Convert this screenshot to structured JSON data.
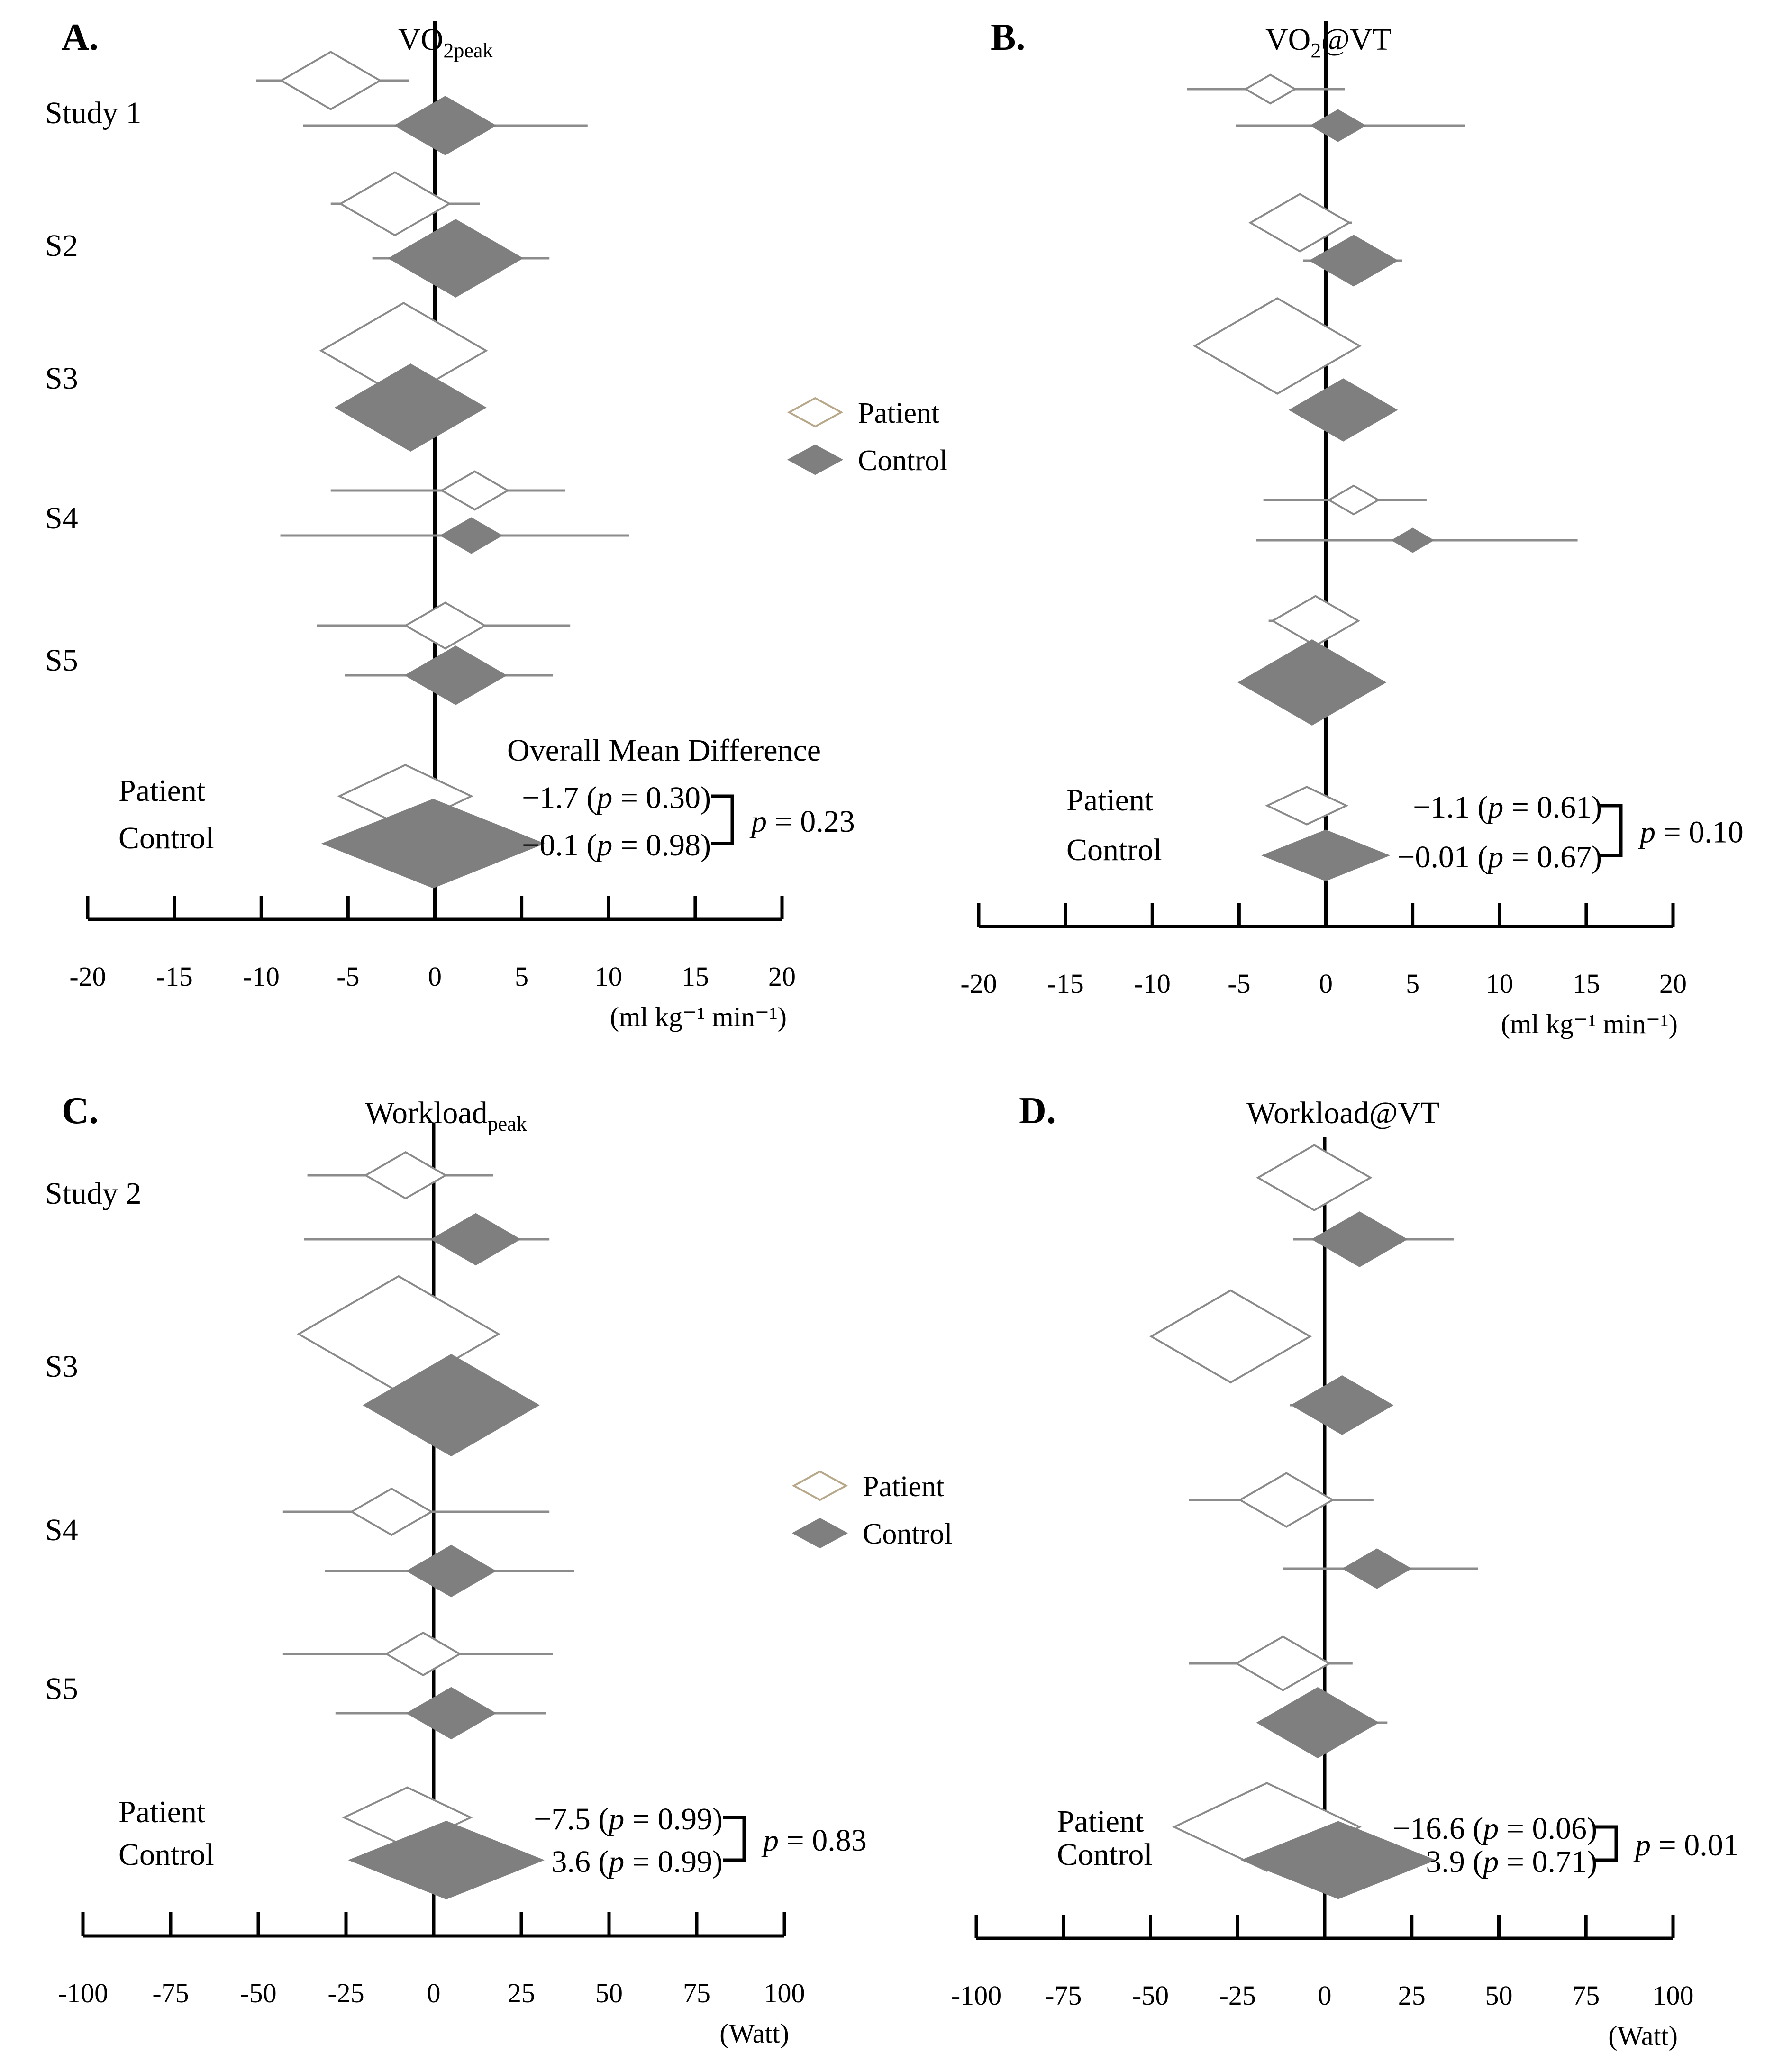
{
  "colors": {
    "patient_fill": "#ffffff",
    "patient_stroke": "#8a8a8a",
    "control_fill": "#7f7f7f",
    "ci_line": "#8c8c8c",
    "axis": "#000000"
  },
  "chart_data": [
    {
      "id": "A",
      "type": "forest",
      "panel_label": "A.",
      "title": "VO",
      "title_sub": "2peak",
      "unit_label": "(ml kg⁻¹ min⁻¹)",
      "xlim": [
        -20,
        20
      ],
      "ticks": [
        -20,
        -15,
        -10,
        -5,
        0,
        5,
        10,
        15,
        20
      ],
      "row_labels": [
        "Study 1",
        "S2",
        "S3",
        "S4",
        "S5"
      ],
      "studies": [
        {
          "patient": {
            "est": -6,
            "lo": -10.3,
            "hi": -1.5,
            "w": 3
          },
          "control": {
            "est": 0.6,
            "lo": -7.6,
            "hi": 8.8,
            "w": 3
          }
        },
        {
          "patient": {
            "est": -2.3,
            "lo": -6,
            "hi": 2.6,
            "w": 3.3
          },
          "control": {
            "est": 1.2,
            "lo": -3.6,
            "hi": 6.6,
            "w": 4
          }
        },
        {
          "patient": {
            "est": -1.8,
            "lo": -4,
            "hi": 0.8,
            "w": 5
          },
          "control": {
            "est": -1.4,
            "lo": -3.8,
            "hi": 1.9,
            "w": 4.5
          }
        },
        {
          "patient": {
            "est": 2.3,
            "lo": -6,
            "hi": 7.5,
            "w": 2
          },
          "control": {
            "est": 2.1,
            "lo": -8.9,
            "hi": 11.2,
            "w": 1.8
          }
        },
        {
          "patient": {
            "est": 0.6,
            "lo": -6.8,
            "hi": 7.8,
            "w": 2.4
          },
          "control": {
            "est": 1.2,
            "lo": -5.2,
            "hi": 6.8,
            "w": 3
          }
        }
      ],
      "overall_heading": "Overall Mean Difference",
      "overall": {
        "patient": {
          "label": "Patient",
          "est": -1.7,
          "w": 4,
          "text_value": "−1.7",
          "text_p": "0.30"
        },
        "control": {
          "label": "Control",
          "est": -0.1,
          "w": 6,
          "text_value": "−0.1",
          "text_p": "0.98"
        },
        "p_compare": "0.23"
      },
      "legend": {
        "patient": "Patient",
        "control": "Control"
      }
    },
    {
      "id": "B",
      "type": "forest",
      "panel_label": "B.",
      "title": "VO",
      "title_sub": "2",
      "title_suffix": "@VT",
      "unit_label": "(ml kg⁻¹ min⁻¹)",
      "xlim": [
        -20,
        20
      ],
      "ticks": [
        -20,
        -15,
        -10,
        -5,
        0,
        5,
        10,
        15,
        20
      ],
      "studies": [
        {
          "patient": {
            "est": -3.2,
            "lo": -8,
            "hi": 1.1,
            "w": 1.5
          },
          "control": {
            "est": 0.7,
            "lo": -5.2,
            "hi": 8,
            "w": 1.6
          }
        },
        {
          "patient": {
            "est": -1.5,
            "lo": -3,
            "hi": 1.5,
            "w": 3
          },
          "control": {
            "est": 1.6,
            "lo": -1.3,
            "hi": 4.4,
            "w": 2.6
          }
        },
        {
          "patient": {
            "est": -2.8,
            "lo": -5.2,
            "hi": 0,
            "w": 5
          },
          "control": {
            "est": 1,
            "lo": -0.5,
            "hi": 2.3,
            "w": 3.2
          }
        },
        {
          "patient": {
            "est": 1.6,
            "lo": -3.6,
            "hi": 5.8,
            "w": 1.5
          },
          "control": {
            "est": 5,
            "lo": -4,
            "hi": 14.5,
            "w": 1.2
          }
        },
        {
          "patient": {
            "est": -0.6,
            "lo": -3.3,
            "hi": 1.6,
            "w": 2.6
          },
          "control": {
            "est": -0.8,
            "lo": -3,
            "hi": 1.4,
            "w": 4.4
          }
        }
      ],
      "overall": {
        "patient": {
          "label": "Patient",
          "est": -1.1,
          "w": 2.4,
          "text_value": "−1.1",
          "text_p": "0.61"
        },
        "control": {
          "label": "Control",
          "est": -0.01,
          "w": 3.4,
          "text_value": "−0.01",
          "text_p": "0.67"
        },
        "p_compare": "0.10"
      }
    },
    {
      "id": "C",
      "type": "forest",
      "panel_label": "C.",
      "title": "Workload",
      "title_sub": "peak",
      "unit_label": "(Watt)",
      "xlim": [
        -100,
        100
      ],
      "ticks": [
        -100,
        -75,
        -50,
        -25,
        0,
        25,
        50,
        75,
        100
      ],
      "row_labels": [
        "Study 2",
        "S3",
        "S4",
        "S5"
      ],
      "studies": [
        {
          "patient": {
            "est": -8,
            "lo": -36,
            "hi": 17,
            "w": 12
          },
          "control": {
            "est": 12,
            "lo": -37,
            "hi": 33,
            "w": 13
          }
        },
        {
          "patient": {
            "est": -10,
            "lo": -25,
            "hi": 5,
            "w": 30
          },
          "control": {
            "est": 5,
            "lo": -8,
            "hi": 18,
            "w": 26
          }
        },
        {
          "patient": {
            "est": -12,
            "lo": -43,
            "hi": 33,
            "w": 12
          },
          "control": {
            "est": 5,
            "lo": -31,
            "hi": 40,
            "w": 13
          }
        },
        {
          "patient": {
            "est": -3,
            "lo": -43,
            "hi": 34,
            "w": 11
          },
          "control": {
            "est": 5,
            "lo": -28,
            "hi": 32,
            "w": 13
          }
        }
      ],
      "overall": {
        "patient": {
          "label": "Patient",
          "est": -7.5,
          "w": 19,
          "text_value": "−7.5",
          "text_p": "0.99"
        },
        "control": {
          "label": "Control",
          "est": 3.6,
          "w": 26,
          "text_value": "3.6",
          "text_p": "0.99"
        },
        "p_compare": "0.83"
      },
      "legend": {
        "patient": "Patient",
        "control": "Control"
      }
    },
    {
      "id": "D",
      "type": "forest",
      "panel_label": "D.",
      "title": "Workload@VT",
      "unit_label": "(Watt)",
      "xlim": [
        -100,
        100
      ],
      "ticks": [
        -100,
        -75,
        -50,
        -25,
        0,
        25,
        50,
        75,
        100
      ],
      "studies": [
        {
          "patient": {
            "est": -3,
            "lo": -18,
            "hi": 10,
            "w": 17
          },
          "control": {
            "est": 10,
            "lo": -9,
            "hi": 37,
            "w": 14
          }
        },
        {
          "patient": {
            "est": -27,
            "lo": -39,
            "hi": -15,
            "w": 24
          },
          "control": {
            "est": 5,
            "lo": -10,
            "hi": 18,
            "w": 15
          }
        },
        {
          "patient": {
            "est": -11,
            "lo": -39,
            "hi": 14,
            "w": 14
          },
          "control": {
            "est": 15,
            "lo": -12,
            "hi": 44,
            "w": 10
          }
        },
        {
          "patient": {
            "est": -12,
            "lo": -39,
            "hi": 8,
            "w": 14
          },
          "control": {
            "est": -2,
            "lo": -18,
            "hi": 18,
            "w": 18
          }
        }
      ],
      "overall": {
        "patient": {
          "label": "Patient",
          "est": -16.6,
          "w": 28,
          "text_value": "−16.6",
          "text_p": "0.06"
        },
        "control": {
          "label": "Control",
          "est": 3.9,
          "w": 26,
          "text_value": "3.9",
          "text_p": "0.71"
        },
        "p_compare": "0.01"
      }
    }
  ]
}
